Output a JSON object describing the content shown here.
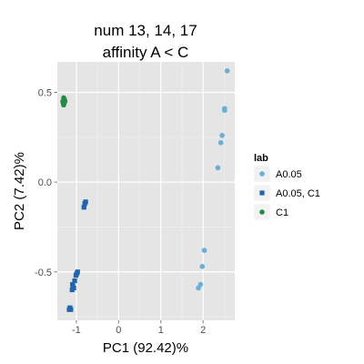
{
  "chart_data": {
    "type": "scatter",
    "title_lines": [
      "num 13, 14, 17",
      "affinity A < C"
    ],
    "xlabel": "PC1 (92.42)%",
    "ylabel": "PC2 (7.42)%",
    "xlim": [
      -1.45,
      2.75
    ],
    "ylim": [
      -0.77,
      0.67
    ],
    "xticks": [
      -1,
      0,
      1,
      2
    ],
    "xtick_labels": [
      "-1",
      "0",
      "1",
      "2"
    ],
    "yticks": [
      -0.5,
      0.0,
      0.5
    ],
    "ytick_labels": [
      "-0.5",
      "0.0",
      "0.5"
    ],
    "grid": true,
    "legend": {
      "title": "lab",
      "position": "right"
    },
    "series": [
      {
        "name": "A0.05",
        "color": "#6baed6",
        "marker": "circle",
        "points": [
          [
            2.57,
            0.62
          ],
          [
            2.51,
            0.41
          ],
          [
            2.51,
            0.4
          ],
          [
            2.45,
            0.26
          ],
          [
            2.42,
            0.22
          ],
          [
            2.35,
            0.08
          ],
          [
            2.03,
            -0.38
          ],
          [
            1.98,
            -0.47
          ],
          [
            1.94,
            -0.57
          ],
          [
            1.89,
            -0.59
          ]
        ]
      },
      {
        "name": "A0.05, C1",
        "color": "#2166ac",
        "marker": "square",
        "points": [
          [
            -0.78,
            -0.11
          ],
          [
            -0.8,
            -0.12
          ],
          [
            -0.82,
            -0.14
          ],
          [
            -0.97,
            -0.5
          ],
          [
            -0.99,
            -0.51
          ],
          [
            -1.01,
            -0.52
          ],
          [
            -1.04,
            -0.55
          ],
          [
            -1.09,
            -0.57
          ],
          [
            -1.08,
            -0.58
          ],
          [
            -1.06,
            -0.59
          ],
          [
            -1.1,
            -0.6
          ],
          [
            -1.15,
            -0.7
          ],
          [
            -1.17,
            -0.71
          ],
          [
            -1.13,
            -0.71
          ]
        ]
      },
      {
        "name": "C1",
        "color": "#238b45",
        "marker": "circle",
        "points": [
          [
            -1.3,
            0.47
          ],
          [
            -1.28,
            0.46
          ],
          [
            -1.32,
            0.45
          ],
          [
            -1.27,
            0.45
          ],
          [
            -1.31,
            0.44
          ],
          [
            -1.29,
            0.44
          ],
          [
            -1.3,
            0.43
          ]
        ]
      }
    ]
  }
}
